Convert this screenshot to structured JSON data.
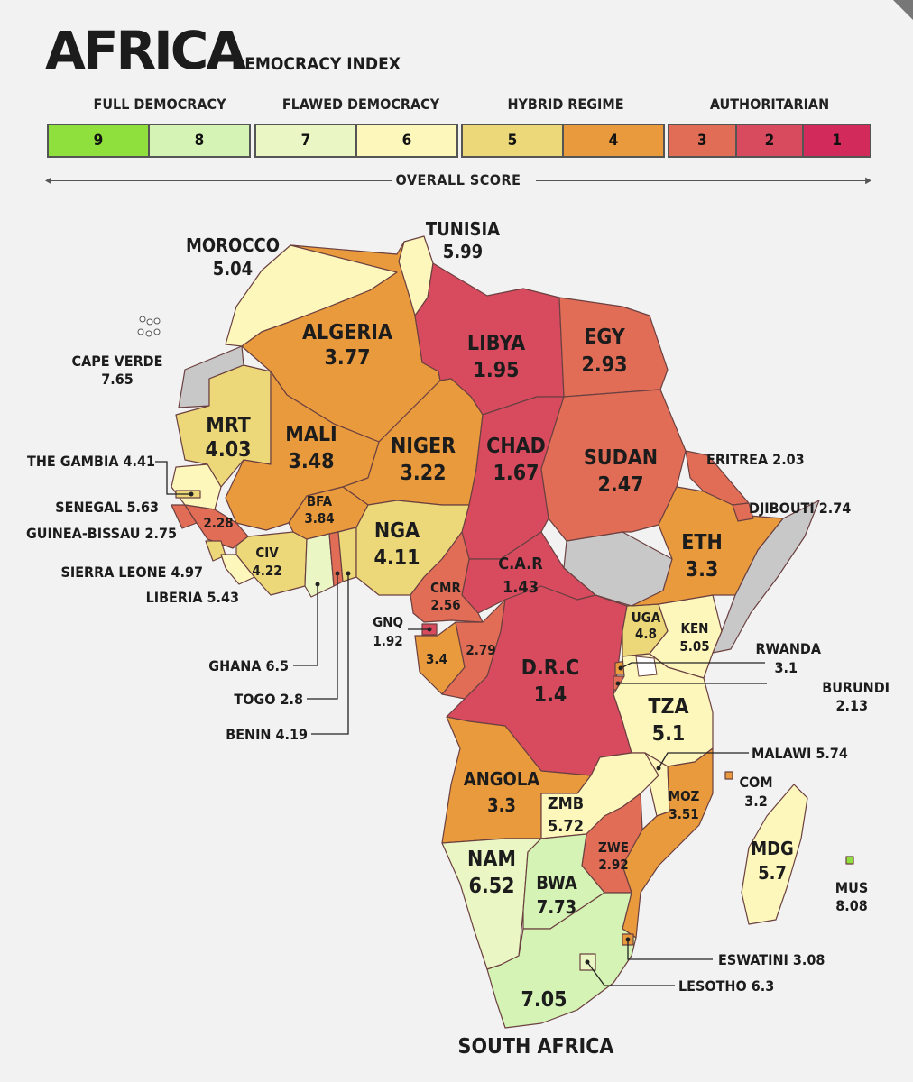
{
  "header": {
    "title": "AFRICA",
    "subtitle": "DEMOCRACY INDEX",
    "axis_label": "OVERALL SCORE",
    "categories": [
      {
        "label": "FULL DEMOCRACY"
      },
      {
        "label": "FLAWED DEMOCRACY"
      },
      {
        "label": "HYBRID REGIME"
      },
      {
        "label": "AUTHORITARIAN"
      }
    ]
  },
  "legend": {
    "groups": [
      {
        "cells": [
          {
            "score": "9",
            "color": "#8fe03c"
          },
          {
            "score": "8",
            "color": "#d4f3b4"
          }
        ]
      },
      {
        "cells": [
          {
            "score": "7",
            "color": "#eaf7c4"
          },
          {
            "score": "6",
            "color": "#fdf7bc"
          }
        ]
      },
      {
        "cells": [
          {
            "score": "5",
            "color": "#ecd879"
          },
          {
            "score": "4",
            "color": "#e99a3d"
          }
        ]
      },
      {
        "cells": [
          {
            "score": "3",
            "color": "#e16d56"
          },
          {
            "score": "2",
            "color": "#d84a5e"
          },
          {
            "score": "1",
            "color": "#d32a5c"
          }
        ]
      }
    ]
  },
  "colors": {
    "no_data": "#c8c8c8",
    "background": "#f2f2f2",
    "text": "#1c1c1c"
  },
  "countries": [
    {
      "id": "morocco",
      "name": "MOROCCO",
      "score": "5.04"
    },
    {
      "id": "tunisia",
      "name": "TUNISIA",
      "score": "5.99"
    },
    {
      "id": "cape-verde",
      "name": "CAPE VERDE",
      "score": "7.65"
    },
    {
      "id": "algeria",
      "name": "ALGERIA",
      "score": "3.77"
    },
    {
      "id": "libya",
      "name": "LIBYA",
      "score": "1.95"
    },
    {
      "id": "egypt",
      "name": "EGY",
      "score": "2.93"
    },
    {
      "id": "mauritania",
      "name": "MRT",
      "score": "4.03"
    },
    {
      "id": "mali",
      "name": "MALI",
      "score": "3.48"
    },
    {
      "id": "niger",
      "name": "NIGER",
      "score": "3.22"
    },
    {
      "id": "chad",
      "name": "CHAD",
      "score": "1.67"
    },
    {
      "id": "sudan",
      "name": "SUDAN",
      "score": "2.47"
    },
    {
      "id": "eritrea",
      "name": "ERITREA",
      "score": "2.03"
    },
    {
      "id": "gambia",
      "name": "THE GAMBIA",
      "score": "4.41"
    },
    {
      "id": "senegal",
      "name": "SENEGAL",
      "score": "5.63"
    },
    {
      "id": "guinea-bissau",
      "name": "GUINEA-BISSAU",
      "score": "2.75"
    },
    {
      "id": "guinea",
      "name": "",
      "score": "2.28"
    },
    {
      "id": "sierra-leone",
      "name": "SIERRA LEONE",
      "score": "4.97"
    },
    {
      "id": "liberia",
      "name": "LIBERIA",
      "score": "5.43"
    },
    {
      "id": "burkina-faso",
      "name": "BFA",
      "score": "3.84"
    },
    {
      "id": "ivory-coast",
      "name": "CIV",
      "score": "4.22"
    },
    {
      "id": "nigeria",
      "name": "NGA",
      "score": "4.11"
    },
    {
      "id": "djibouti",
      "name": "DJIBOUTI",
      "score": "2.74"
    },
    {
      "id": "ethiopia",
      "name": "ETH",
      "score": "3.3"
    },
    {
      "id": "car",
      "name": "C.A.R",
      "score": "1.43"
    },
    {
      "id": "cameroon",
      "name": "CMR",
      "score": "2.56"
    },
    {
      "id": "ghana",
      "name": "GHANA",
      "score": "6.5"
    },
    {
      "id": "togo",
      "name": "TOGO",
      "score": "2.8"
    },
    {
      "id": "benin",
      "name": "BENIN",
      "score": "4.19"
    },
    {
      "id": "eq-guinea",
      "name": "GNQ",
      "score": "1.92"
    },
    {
      "id": "gabon",
      "name": "",
      "score": "3.4"
    },
    {
      "id": "congo",
      "name": "",
      "score": "2.79"
    },
    {
      "id": "uganda",
      "name": "UGA",
      "score": "4.8"
    },
    {
      "id": "kenya",
      "name": "KEN",
      "score": "5.05"
    },
    {
      "id": "rwanda",
      "name": "RWANDA",
      "score": "3.1"
    },
    {
      "id": "drc",
      "name": "D.R.C",
      "score": "1.4"
    },
    {
      "id": "burundi",
      "name": "BURUNDI",
      "score": "2.13"
    },
    {
      "id": "tanzania",
      "name": "TZA",
      "score": "5.1"
    },
    {
      "id": "malawi",
      "name": "MALAWI",
      "score": "5.74"
    },
    {
      "id": "comoros",
      "name": "COM",
      "score": "3.2"
    },
    {
      "id": "angola",
      "name": "ANGOLA",
      "score": "3.3"
    },
    {
      "id": "zambia",
      "name": "ZMB",
      "score": "5.72"
    },
    {
      "id": "mozambique",
      "name": "MOZ",
      "score": "3.51"
    },
    {
      "id": "madagascar",
      "name": "MDG",
      "score": "5.7"
    },
    {
      "id": "zimbabwe",
      "name": "ZWE",
      "score": "2.92"
    },
    {
      "id": "namibia",
      "name": "NAM",
      "score": "6.52"
    },
    {
      "id": "botswana",
      "name": "BWA",
      "score": "7.73"
    },
    {
      "id": "mauritius",
      "name": "MUS",
      "score": "8.08"
    },
    {
      "id": "eswatini",
      "name": "ESWATINI",
      "score": "3.08"
    },
    {
      "id": "lesotho",
      "name": "LESOTHO",
      "score": "6.3"
    },
    {
      "id": "south-africa",
      "name": "SOUTH AFRICA",
      "score": "7.05"
    }
  ]
}
